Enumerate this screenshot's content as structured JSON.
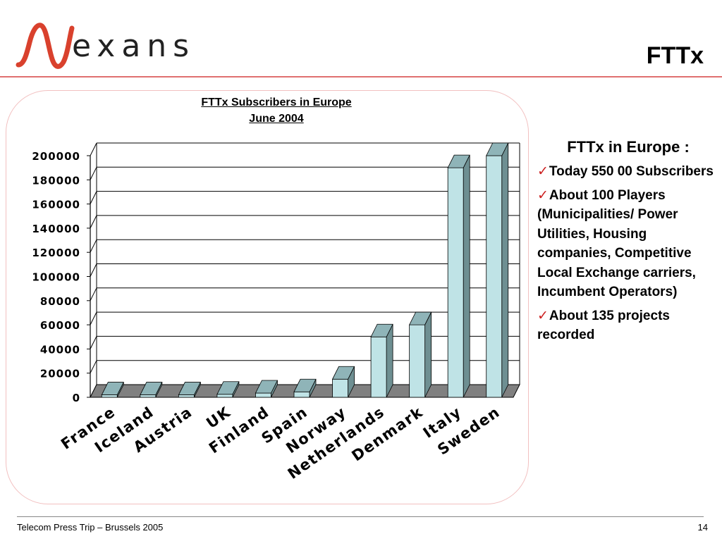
{
  "header": {
    "logo_text": "exans",
    "slide_title": "FTTx"
  },
  "chart_data": {
    "type": "bar",
    "title": "FTTx Subscribers in Europe",
    "subtitle": "June 2004",
    "categories": [
      "France",
      "Iceland",
      "Austria",
      "UK",
      "Finland",
      "Spain",
      "Norway",
      "Netherlands",
      "Denmark",
      "Italy",
      "Sweden"
    ],
    "values": [
      2000,
      2000,
      2000,
      2500,
      3500,
      4500,
      15000,
      50000,
      60000,
      190000,
      200000
    ],
    "yticks": [
      0,
      20000,
      40000,
      60000,
      80000,
      100000,
      120000,
      140000,
      160000,
      180000,
      200000
    ],
    "ylim": [
      0,
      200000
    ],
    "xlabel": "",
    "ylabel": "",
    "grid": true,
    "legend": "none",
    "colors": {
      "bar_front": "#bfe3e6",
      "bar_top": "#8fb4b8",
      "bar_side": "#6e8f92",
      "floor": "#808080",
      "grid": "#000000"
    }
  },
  "side_panel": {
    "heading": "FTTx in Europe :",
    "check_glyph": "✓",
    "items": [
      "Today 550 00 Subscribers",
      "About 100 Players (Municipalities/ Power Utilities, Housing companies, Competitive Local Exchange carriers, Incumbent Operators)",
      "About 135 projects recorded"
    ]
  },
  "footer": {
    "left": "Telecom Press Trip – Brussels 2005",
    "page_number": "14"
  },
  "colors": {
    "accent_rule": "#e07070",
    "frame_border": "#f2c0c0",
    "check_mark": "#cc2020"
  }
}
